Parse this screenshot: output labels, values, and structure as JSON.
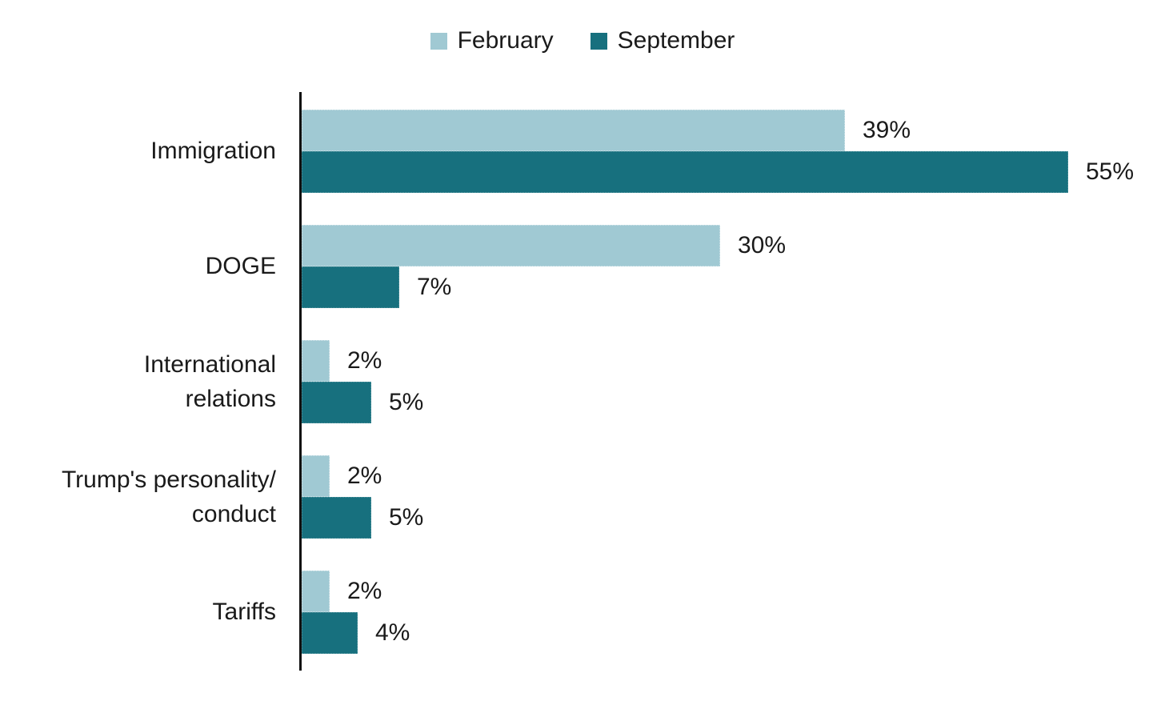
{
  "page": {
    "background": "#ffffff",
    "text_color": "#1a1a1a",
    "axis_color": "#111111"
  },
  "legend": {
    "items": [
      {
        "label": "February",
        "color": "#a0c9d3"
      },
      {
        "label": "September",
        "color": "#17707e"
      }
    ]
  },
  "chart_data": {
    "type": "bar",
    "orientation": "horizontal",
    "title": "",
    "categories": [
      "Immigration",
      "DOGE",
      "International\nrelations",
      "Trump's personality/\nconduct",
      "Tariffs"
    ],
    "series": [
      {
        "name": "February",
        "color": "#a0c9d3",
        "values": [
          39,
          30,
          2,
          2,
          2
        ]
      },
      {
        "name": "September",
        "color": "#17707e",
        "values": [
          55,
          7,
          5,
          5,
          4
        ]
      }
    ],
    "value_suffix": "%",
    "value_labels_shown": true,
    "xlim": [
      0,
      55
    ],
    "legend_position": "top",
    "grid": false,
    "ylabel": "",
    "xlabel": ""
  }
}
